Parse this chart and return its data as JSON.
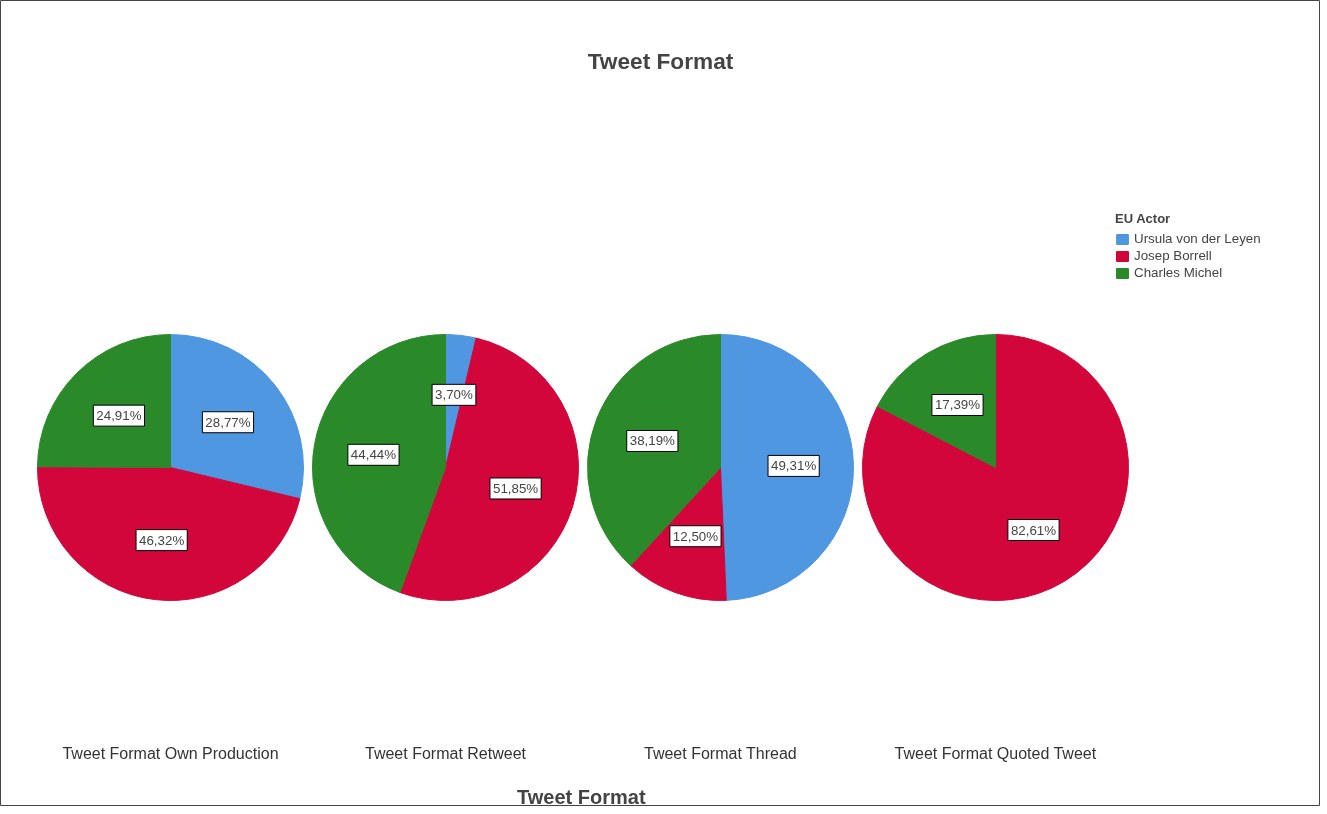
{
  "chart_data": {
    "type": "pie",
    "title": "Tweet Format",
    "xlabel": "Tweet Format",
    "legend": "top right",
    "legend_title": "EU Actor",
    "categories": [
      "Ursula von der Leyen",
      "Josep Borrell",
      "Charles Michel"
    ],
    "colors": [
      "#4f97e0",
      "#d2063a",
      "#2a8a2a"
    ],
    "series": [
      {
        "name": "Tweet Format Own Production",
        "values": [
          28.77,
          46.32,
          24.91
        ],
        "value_labels": [
          "28,77%",
          "46,32%",
          "24,91%"
        ]
      },
      {
        "name": "Tweet Format Retweet",
        "values": [
          3.7,
          51.85,
          44.44
        ],
        "value_labels": [
          "3,70%",
          "51,85%",
          "44,44%"
        ]
      },
      {
        "name": "Tweet Format Thread",
        "values": [
          49.31,
          12.5,
          38.19
        ],
        "value_labels": [
          "49,31%",
          "12,50%",
          "38,19%"
        ]
      },
      {
        "name": "Tweet Format Quoted Tweet",
        "values": [
          0,
          82.61,
          17.39
        ],
        "value_labels": [
          null,
          "82,61%",
          "17,39%"
        ]
      }
    ]
  }
}
